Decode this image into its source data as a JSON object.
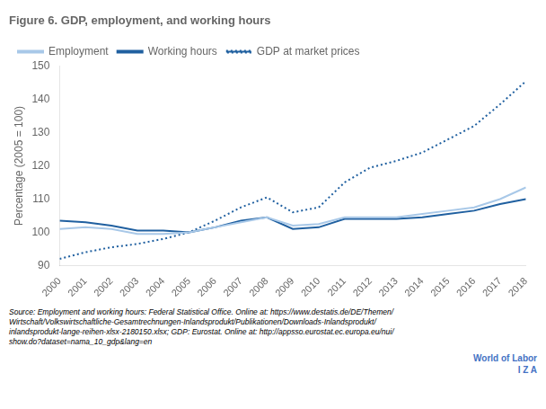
{
  "chart_data": {
    "type": "line",
    "title": "Figure 6. GDP, employment, and working hours",
    "y_label": "Percentage (2005 = 100)",
    "x": [
      2000,
      2001,
      2002,
      2003,
      2004,
      2005,
      2006,
      2007,
      2008,
      2009,
      2010,
      2011,
      2012,
      2013,
      2014,
      2015,
      2016,
      2017,
      2018
    ],
    "series": [
      {
        "name": "Employment",
        "color": "#a8c8e8",
        "line_style": "solid",
        "values": [
          101.0,
          101.5,
          101.0,
          99.5,
          99.5,
          100.0,
          101.5,
          103.0,
          104.5,
          102.0,
          102.5,
          104.5,
          104.5,
          104.5,
          105.5,
          106.5,
          107.5,
          110.0,
          113.5
        ]
      },
      {
        "name": "Working hours",
        "color": "#2060a0",
        "line_style": "solid",
        "values": [
          103.5,
          103.0,
          102.0,
          100.5,
          100.5,
          100.0,
          101.5,
          103.5,
          104.5,
          101.0,
          101.5,
          104.0,
          104.0,
          104.0,
          104.5,
          105.5,
          106.5,
          108.5,
          110.0
        ]
      },
      {
        "name": "GDP at market prices",
        "color": "#2060a0",
        "line_style": "dotted",
        "values": [
          92.0,
          94.0,
          95.5,
          96.5,
          98.0,
          100.0,
          103.5,
          107.5,
          110.5,
          106.0,
          107.5,
          115.0,
          119.5,
          121.5,
          124.0,
          128.0,
          132.0,
          138.5,
          145.5
        ]
      }
    ],
    "xlim": [
      2000,
      2018
    ],
    "xticks": [
      2000,
      2001,
      2002,
      2003,
      2004,
      2005,
      2006,
      2007,
      2008,
      2009,
      2010,
      2011,
      2012,
      2013,
      2014,
      2015,
      2016,
      2017,
      2018
    ],
    "ylim": [
      90,
      150
    ],
    "yticks": [
      90,
      100,
      110,
      120,
      130,
      140,
      150
    ],
    "grid": false,
    "legend": "upper left",
    "annotations": [
      "Source: Employment and working hours: Federal Statistical Office. Online at: https://www.destatis.de/DE/Themen/\nWirtschaft/Volkswirtschaftliche-Gesamtrechnungen-Inlandsprodukt/Publikationen/Downloads-Inlandsprodukt/\ninlandsprodukt-lange-reihen-xlsx-2180150.xlsx; GDP: Eurostat. Online at: http://appsso.eurostat.ec.europa.eu/nui/\nshow.do?dataset=nama_10_gdp&lang=en",
      "World of Labor",
      "I Z A"
    ],
    "annotation_color": "#4472c4"
  }
}
